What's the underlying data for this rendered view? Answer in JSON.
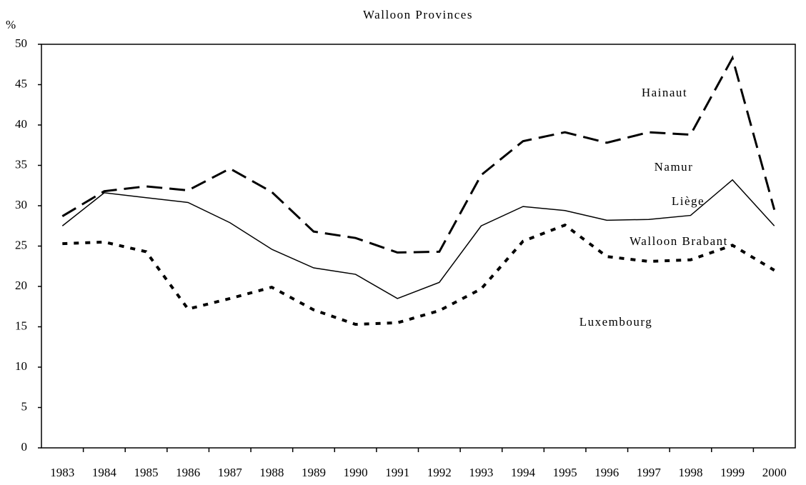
{
  "chart_data": {
    "type": "line",
    "title": "Walloon Provinces",
    "y_label": "%",
    "categories": [
      "1983",
      "1984",
      "1985",
      "1986",
      "1987",
      "1988",
      "1989",
      "1990",
      "1991",
      "1992",
      "1993",
      "1994",
      "1995",
      "1996",
      "1997",
      "1998",
      "1999",
      "2000"
    ],
    "series": [
      {
        "name": "Hainaut",
        "color": "#000000",
        "dash": "dashed",
        "values": [
          28.7,
          31.8,
          32.4,
          31.9,
          34.6,
          31.7,
          26.8,
          26.0,
          24.2,
          24.3,
          33.8,
          38.0,
          39.1,
          37.8,
          39.1,
          38.8,
          48.3,
          29.5
        ]
      },
      {
        "name": "Liège",
        "color": "#000000",
        "dash": "solid",
        "values": [
          27.5,
          31.6,
          31.0,
          30.4,
          27.9,
          24.6,
          22.3,
          21.5,
          18.5,
          20.5,
          27.5,
          29.9,
          29.4,
          28.2,
          28.3,
          28.8,
          33.2,
          27.5
        ]
      },
      {
        "name": "Luxembourg",
        "color": "#000000",
        "dash": "dotted",
        "values": [
          25.3,
          25.5,
          24.3,
          17.2,
          18.5,
          19.9,
          17.1,
          15.3,
          15.5,
          17.0,
          19.7,
          25.6,
          27.6,
          23.7,
          23.1,
          23.3,
          25.1,
          22.0
        ]
      }
    ],
    "annotations": [
      "Namur",
      "Walloon Brabant"
    ],
    "ylim": [
      0,
      50
    ],
    "yticks": [
      0,
      5,
      10,
      15,
      20,
      25,
      30,
      35,
      40,
      45,
      50
    ]
  }
}
